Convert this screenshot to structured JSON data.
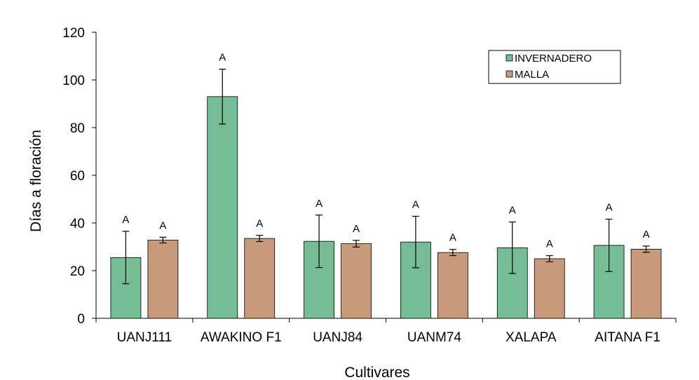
{
  "chart_data": {
    "type": "bar",
    "title": "",
    "xlabel": "Cultivares",
    "ylabel": "Días a floración",
    "ylim": [
      0,
      120
    ],
    "yticks": [
      0,
      20,
      40,
      60,
      80,
      100,
      120
    ],
    "categories": [
      "UANJ111",
      "AWAKINO F1",
      "UANJ84",
      "UANM74",
      "XALAPA",
      "AITANA F1"
    ],
    "series": [
      {
        "name": "INVERNADERO",
        "color": "#76bd96",
        "values": [
          25.5,
          93,
          32.3,
          32,
          29.6,
          30.6
        ],
        "errors": [
          11,
          11.5,
          11,
          10.8,
          10.8,
          11
        ],
        "labels": [
          "A",
          "A",
          "A",
          "A",
          "A",
          "A"
        ]
      },
      {
        "name": "MALLA",
        "color": "#c69a7b",
        "values": [
          32.8,
          33.5,
          31.3,
          27.6,
          25,
          29
        ],
        "errors": [
          1.2,
          1.3,
          1.4,
          1.3,
          1.3,
          1.3
        ],
        "labels": [
          "A",
          "A",
          "A",
          "A",
          "A",
          "A"
        ]
      }
    ],
    "legend": {
      "position": "top-right",
      "entries": [
        "INVERNADERO",
        "MALLA"
      ]
    }
  }
}
